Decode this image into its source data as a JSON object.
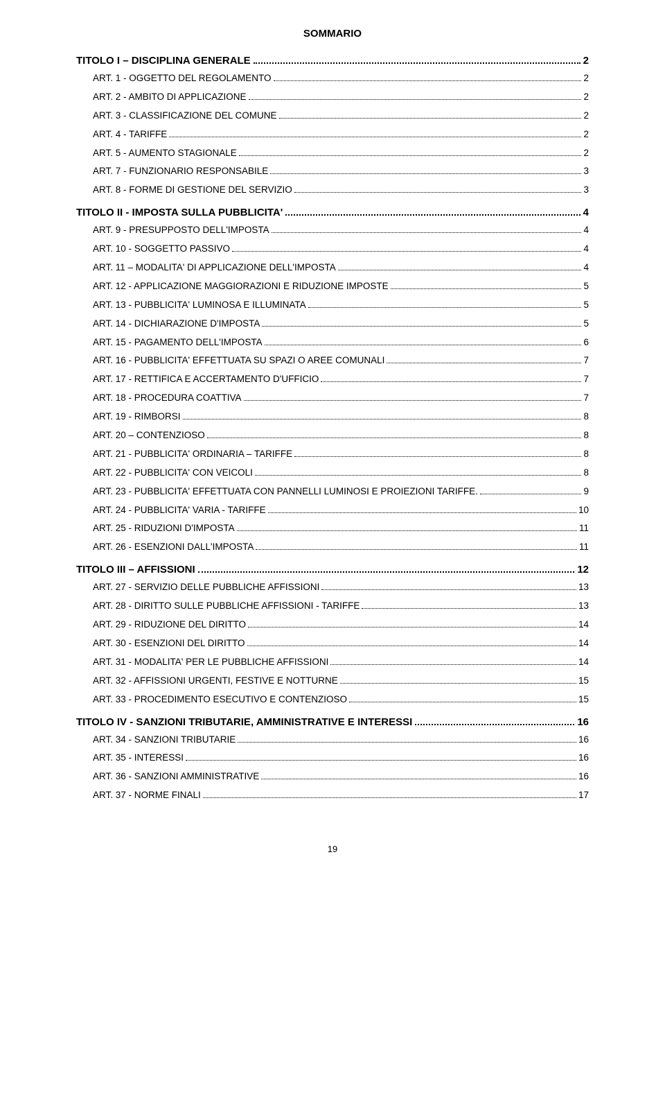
{
  "title": "SOMMARIO",
  "pageNumber": "19",
  "sections": [
    {
      "heading": "TITOLO I – DISCIPLINA GENERALE",
      "page": "2",
      "entries": [
        {
          "label": "ART. 1 - OGGETTO DEL REGOLAMENTO",
          "page": "2"
        },
        {
          "label": "ART. 2 - AMBITO DI APPLICAZIONE",
          "page": "2"
        },
        {
          "label": "ART. 3 - CLASSIFICAZIONE DEL COMUNE",
          "page": "2"
        },
        {
          "label": "ART. 4 - TARIFFE",
          "page": "2"
        },
        {
          "label": "ART. 5 - AUMENTO STAGIONALE",
          "page": "2"
        },
        {
          "label": "ART. 7 - FUNZIONARIO RESPONSABILE",
          "page": "3"
        },
        {
          "label": "ART. 8 - FORME DI GESTIONE DEL SERVIZIO",
          "page": "3"
        }
      ]
    },
    {
      "heading": "TITOLO II - IMPOSTA SULLA PUBBLICITA'",
      "page": "4",
      "entries": [
        {
          "label": "ART. 9 - PRESUPPOSTO DELL'IMPOSTA",
          "page": "4"
        },
        {
          "label": "ART. 10 - SOGGETTO PASSIVO",
          "page": "4"
        },
        {
          "label": "ART. 11 – MODALITA' DI APPLICAZIONE DELL'IMPOSTA",
          "page": "4"
        },
        {
          "label": "ART. 12 - APPLICAZIONE MAGGIORAZIONI E RIDUZIONE IMPOSTE",
          "page": "5"
        },
        {
          "label": "ART. 13 - PUBBLICITA' LUMINOSA E ILLUMINATA",
          "page": "5"
        },
        {
          "label": "ART. 14 - DICHIARAZIONE D'IMPOSTA",
          "page": "5"
        },
        {
          "label": "ART. 15 - PAGAMENTO DELL'IMPOSTA",
          "page": "6"
        },
        {
          "label": "ART. 16 - PUBBLICITA' EFFETTUATA SU SPAZI O AREE COMUNALI",
          "page": "7"
        },
        {
          "label": "ART. 17 - RETTIFICA E ACCERTAMENTO D'UFFICIO",
          "page": "7"
        },
        {
          "label": "ART. 18 - PROCEDURA COATTIVA",
          "page": "7"
        },
        {
          "label": "ART. 19 - RIMBORSI",
          "page": "8"
        },
        {
          "label": "ART. 20 – CONTENZIOSO",
          "page": "8"
        },
        {
          "label": "ART. 21 - PUBBLICITA' ORDINARIA – TARIFFE",
          "page": "8"
        },
        {
          "label": "ART. 22 - PUBBLICITA' CON VEICOLI",
          "page": "8"
        },
        {
          "label": "ART. 23 - PUBBLICITA' EFFETTUATA CON PANNELLI LUMINOSI E PROIEZIONI TARIFFE.",
          "page": "9"
        },
        {
          "label": "ART. 24 - PUBBLICITA' VARIA - TARIFFE",
          "page": "10"
        },
        {
          "label": "ART. 25 - RIDUZIONI D'IMPOSTA",
          "page": "11"
        },
        {
          "label": "ART. 26 - ESENZIONI DALL'IMPOSTA",
          "page": "11"
        }
      ]
    },
    {
      "heading": "TITOLO III – AFFISSIONI",
      "page": "12",
      "entries": [
        {
          "label": "ART. 27 - SERVIZIO DELLE PUBBLICHE AFFISSIONI",
          "page": "13"
        },
        {
          "label": "ART. 28 - DIRITTO SULLE PUBBLICHE AFFISSIONI - TARIFFE",
          "page": "13"
        },
        {
          "label": "ART. 29 - RIDUZIONE DEL DIRITTO",
          "page": "14"
        },
        {
          "label": "ART. 30 - ESENZIONI DEL DIRITTO",
          "page": "14"
        },
        {
          "label": "ART. 31 - MODALITA' PER LE PUBBLICHE AFFISSIONI",
          "page": "14"
        },
        {
          "label": "ART. 32 - AFFISSIONI URGENTI, FESTIVE E NOTTURNE",
          "page": "15"
        },
        {
          "label": "ART. 33 - PROCEDIMENTO ESECUTIVO E CONTENZIOSO",
          "page": "15"
        }
      ]
    },
    {
      "heading": "TITOLO IV  -  SANZIONI TRIBUTARIE, AMMINISTRATIVE E INTERESSI",
      "page": "16",
      "entries": [
        {
          "label": "ART. 34 - SANZIONI TRIBUTARIE",
          "page": "16"
        },
        {
          "label": "ART. 35 - INTERESSI",
          "page": "16"
        },
        {
          "label": "ART. 36 - SANZIONI AMMINISTRATIVE",
          "page": "16"
        },
        {
          "label": "ART. 37 - NORME FINALI",
          "page": "17"
        }
      ]
    }
  ]
}
